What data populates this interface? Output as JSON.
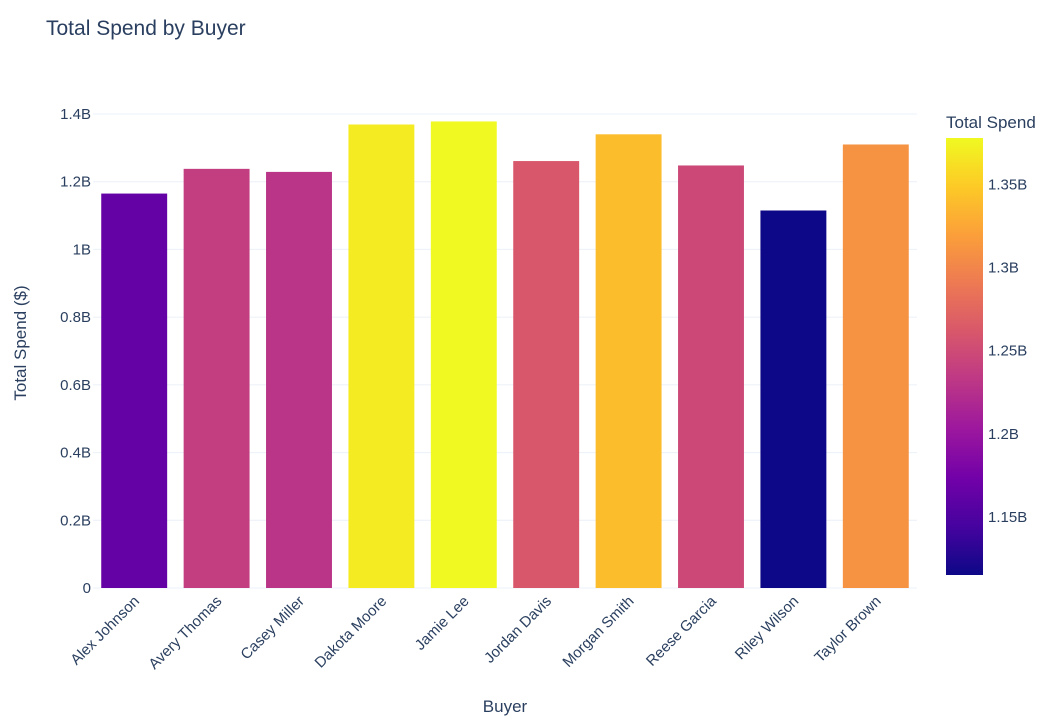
{
  "chart_data": {
    "type": "bar",
    "title": "Total Spend by Buyer",
    "xlabel": "Buyer",
    "ylabel": "Total Spend ($)",
    "categories": [
      "Alex Johnson",
      "Avery Thomas",
      "Casey Miller",
      "Dakota Moore",
      "Jamie Lee",
      "Jordan Davis",
      "Morgan Smith",
      "Reese Garcia",
      "Riley Wilson",
      "Taylor Brown"
    ],
    "values": [
      1.165,
      1.238,
      1.229,
      1.369,
      1.378,
      1.261,
      1.34,
      1.248,
      1.115,
      1.31
    ],
    "value_unit": "billions of $",
    "ylim": [
      0,
      1.4
    ],
    "yticks": [
      {
        "value": 0,
        "label": "0"
      },
      {
        "value": 0.2,
        "label": "0.2B"
      },
      {
        "value": 0.4,
        "label": "0.4B"
      },
      {
        "value": 0.6,
        "label": "0.6B"
      },
      {
        "value": 0.8,
        "label": "0.8B"
      },
      {
        "value": 1.0,
        "label": "1B"
      },
      {
        "value": 1.2,
        "label": "1.2B"
      },
      {
        "value": 1.4,
        "label": "1.4B"
      }
    ],
    "grid": true,
    "colorbar": {
      "title": "Total Spend",
      "range": [
        1.115,
        1.378
      ],
      "colorscale": [
        "#0d0887",
        "#46039f",
        "#7201a8",
        "#9c179e",
        "#bd3786",
        "#d8576b",
        "#ed7953",
        "#fb9f3a",
        "#fdca26",
        "#f0f921"
      ],
      "ticks": [
        {
          "value": 1.15,
          "label": "1.15B"
        },
        {
          "value": 1.2,
          "label": "1.2B"
        },
        {
          "value": 1.25,
          "label": "1.25B"
        },
        {
          "value": 1.3,
          "label": "1.3B"
        },
        {
          "value": 1.35,
          "label": "1.35B"
        }
      ]
    }
  }
}
